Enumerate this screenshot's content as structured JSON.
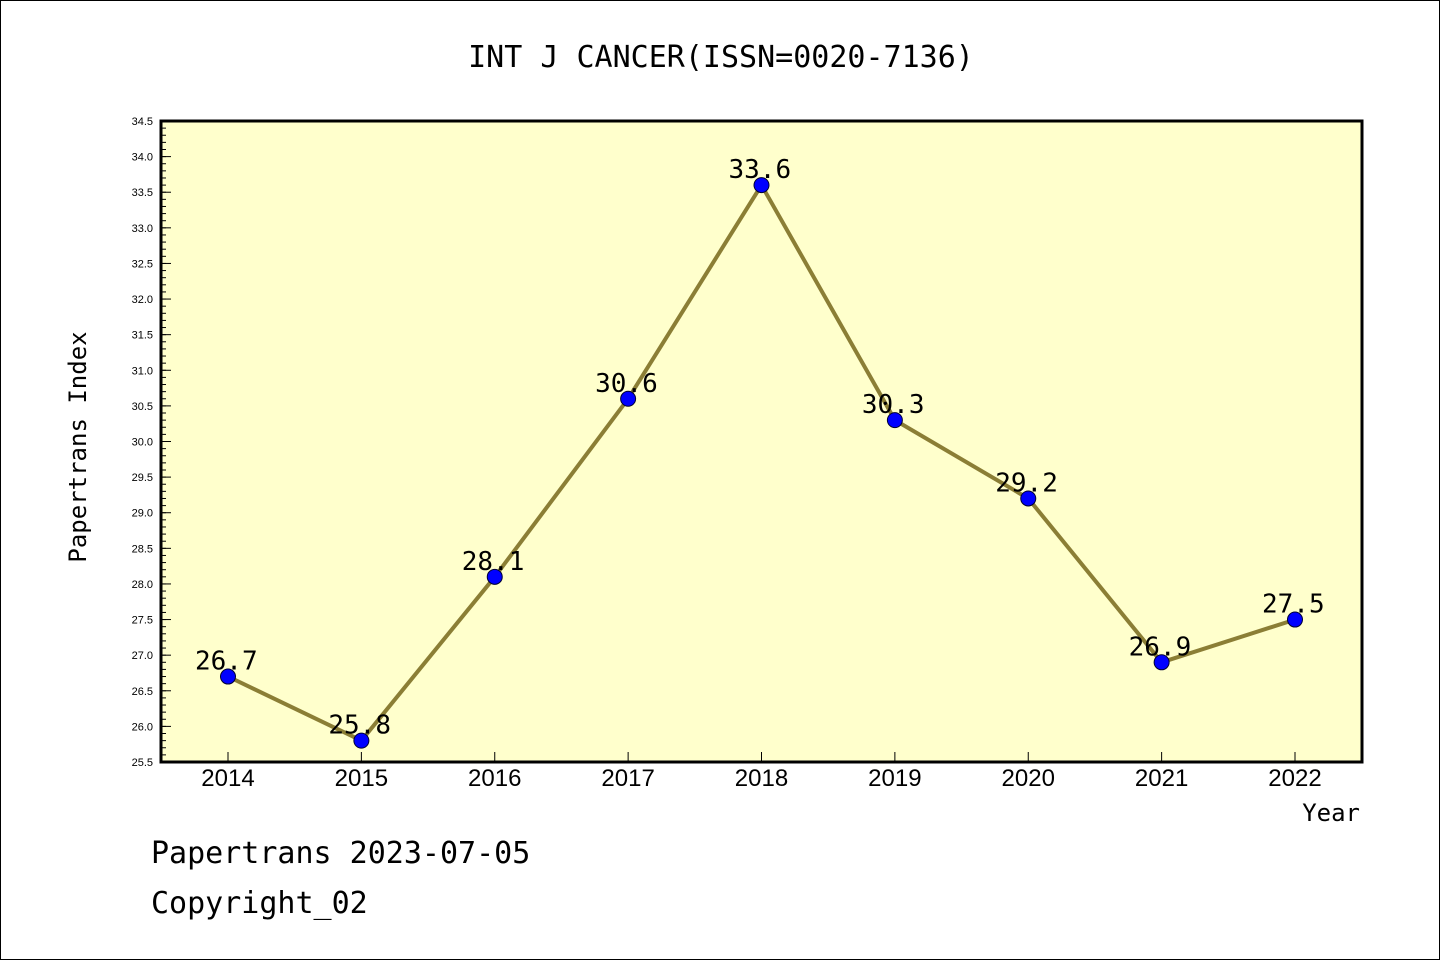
{
  "chart_data": {
    "type": "line",
    "title": "INT J CANCER(ISSN=0020-7136)",
    "xlabel": "Year",
    "ylabel": "Papertrans Index",
    "categories": [
      "2014",
      "2015",
      "2016",
      "2017",
      "2018",
      "2019",
      "2020",
      "2021",
      "2022"
    ],
    "values": [
      26.7,
      25.8,
      28.1,
      30.6,
      33.6,
      30.3,
      29.2,
      26.9,
      27.5
    ],
    "data_labels": [
      "26.7",
      "25.8",
      "28.1",
      "30.6",
      "33.6",
      "30.3",
      "29.2",
      "26.9",
      "27.5"
    ],
    "ylim": [
      25.5,
      34.5
    ],
    "y_ticks": [
      "25.5",
      "26.0",
      "26.5",
      "27.0",
      "27.5",
      "28.0",
      "28.5",
      "29.0",
      "29.5",
      "30.0",
      "30.5",
      "31.0",
      "31.5",
      "32.0",
      "32.5",
      "33.0",
      "33.5",
      "34.0",
      "34.5"
    ],
    "grid": false,
    "colors": {
      "plot_background": "#ffffcc",
      "line": "#8b7e35",
      "marker": "#0000ff"
    }
  },
  "footer": {
    "date_text": "Papertrans 2023-07-05",
    "copyright_text": "Copyright_02"
  }
}
